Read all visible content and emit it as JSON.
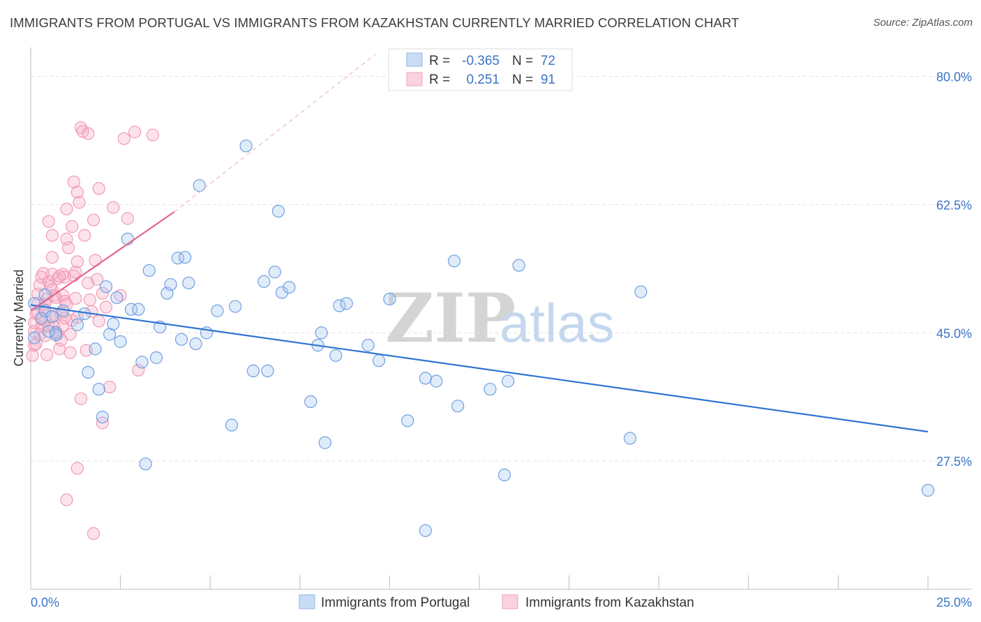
{
  "header": {
    "title": "IMMIGRANTS FROM PORTUGAL VS IMMIGRANTS FROM KAZAKHSTAN CURRENTLY MARRIED CORRELATION CHART",
    "source": "Source: ZipAtlas.com"
  },
  "watermark": {
    "zip": "ZIP",
    "atlas": "atlas"
  },
  "stats": [
    {
      "r_label": "R =",
      "r_value": "-0.365",
      "n_label": "N =",
      "n_value": "72",
      "color": "#a9c8ee"
    },
    {
      "r_label": "R =",
      "r_value": "0.251",
      "n_label": "N =",
      "n_value": "91",
      "color": "#f6b8ca"
    }
  ],
  "chart_data": {
    "type": "scatter",
    "title": "IMMIGRANTS FROM PORTUGAL VS IMMIGRANTS FROM KAZAKHSTAN CURRENTLY MARRIED CORRELATION CHART",
    "xlabel": "",
    "ylabel": "Currently Married",
    "xlim": [
      0,
      25
    ],
    "ylim": [
      10,
      83
    ],
    "x_tick_labels": [
      "0.0%",
      "25.0%"
    ],
    "y_ticks": [
      80,
      62.5,
      45,
      27.5
    ],
    "y_tick_labels": [
      "80.0%",
      "62.5%",
      "45.0%",
      "27.5%"
    ],
    "grid": true,
    "legend": [
      "Immigrants from Portugal",
      "Immigrants from Kazakhstan"
    ],
    "series": [
      {
        "name": "Immigrants from Portugal",
        "color": "#6f9fe0",
        "line_color": "#2f74d0",
        "trend": {
          "x": [
            0.0,
            25.0
          ],
          "y": [
            48.8,
            31.5
          ],
          "dashed_extension": false
        },
        "points": [
          [
            0.1,
            44.3
          ],
          [
            0.3,
            47.0
          ],
          [
            0.4,
            50.2
          ],
          [
            0.4,
            48.0
          ],
          [
            0.6,
            47.2
          ],
          [
            0.7,
            45.0
          ],
          [
            0.7,
            44.7
          ],
          [
            0.9,
            48.0
          ],
          [
            1.3,
            46.1
          ],
          [
            1.5,
            47.6
          ],
          [
            1.6,
            39.6
          ],
          [
            1.8,
            42.8
          ],
          [
            1.9,
            37.3
          ],
          [
            2.0,
            33.5
          ],
          [
            2.1,
            51.3
          ],
          [
            2.2,
            44.8
          ],
          [
            2.3,
            46.2
          ],
          [
            2.4,
            49.8
          ],
          [
            2.5,
            43.8
          ],
          [
            2.7,
            57.8
          ],
          [
            2.8,
            48.2
          ],
          [
            3.0,
            48.2
          ],
          [
            3.1,
            41.0
          ],
          [
            3.2,
            27.1
          ],
          [
            3.3,
            53.5
          ],
          [
            3.5,
            41.6
          ],
          [
            3.6,
            45.8
          ],
          [
            3.8,
            50.4
          ],
          [
            3.9,
            51.6
          ],
          [
            4.1,
            55.2
          ],
          [
            4.2,
            44.1
          ],
          [
            4.3,
            55.3
          ],
          [
            4.4,
            51.8
          ],
          [
            4.6,
            43.5
          ],
          [
            4.7,
            65.1
          ],
          [
            4.9,
            45.0
          ],
          [
            5.2,
            48.0
          ],
          [
            5.6,
            32.4
          ],
          [
            5.7,
            48.6
          ],
          [
            6.0,
            70.5
          ],
          [
            6.2,
            39.8
          ],
          [
            6.5,
            52.0
          ],
          [
            6.6,
            39.8
          ],
          [
            6.8,
            53.3
          ],
          [
            6.9,
            61.6
          ],
          [
            7.0,
            50.5
          ],
          [
            7.2,
            51.2
          ],
          [
            7.8,
            35.6
          ],
          [
            8.0,
            43.3
          ],
          [
            8.1,
            45.0
          ],
          [
            8.2,
            30.0
          ],
          [
            8.5,
            41.9
          ],
          [
            8.6,
            48.7
          ],
          [
            8.8,
            49.0
          ],
          [
            9.4,
            43.3
          ],
          [
            9.7,
            41.2
          ],
          [
            10.0,
            49.6
          ],
          [
            10.5,
            33.0
          ],
          [
            11.0,
            38.8
          ],
          [
            11.3,
            38.4
          ],
          [
            11.0,
            18.0
          ],
          [
            11.8,
            54.8
          ],
          [
            11.9,
            35.0
          ],
          [
            12.8,
            37.3
          ],
          [
            13.2,
            25.6
          ],
          [
            13.3,
            38.4
          ],
          [
            13.6,
            54.2
          ],
          [
            16.7,
            30.6
          ],
          [
            17.0,
            50.6
          ],
          [
            25.0,
            23.5
          ],
          [
            0.1,
            49.0
          ],
          [
            0.5,
            45.2
          ]
        ]
      },
      {
        "name": "Immigrants from Kazakhstan",
        "color": "#f29ab4",
        "line_color": "#e2648c",
        "trend": {
          "x": [
            0.0,
            4.0
          ],
          "y": [
            48.0,
            61.5
          ],
          "dashed_extension": true,
          "dash_to": [
            9.6,
            83.0
          ]
        },
        "points": [
          [
            0.05,
            41.9
          ],
          [
            0.1,
            43.3
          ],
          [
            0.1,
            45.2
          ],
          [
            0.1,
            46.4
          ],
          [
            0.2,
            47.7
          ],
          [
            0.2,
            49.0
          ],
          [
            0.2,
            50.3
          ],
          [
            0.25,
            51.5
          ],
          [
            0.3,
            52.6
          ],
          [
            0.3,
            45.8
          ],
          [
            0.35,
            48.3
          ],
          [
            0.4,
            44.6
          ],
          [
            0.4,
            46.6
          ],
          [
            0.45,
            49.6
          ],
          [
            0.5,
            52.0
          ],
          [
            0.5,
            60.2
          ],
          [
            0.5,
            45.9
          ],
          [
            0.55,
            47.2
          ],
          [
            0.6,
            50.9
          ],
          [
            0.6,
            53.0
          ],
          [
            0.6,
            58.3
          ],
          [
            0.6,
            55.3
          ],
          [
            0.65,
            45.8
          ],
          [
            0.7,
            47.4
          ],
          [
            0.7,
            49.8
          ],
          [
            0.75,
            52.4
          ],
          [
            0.75,
            44.8
          ],
          [
            0.8,
            42.8
          ],
          [
            0.85,
            47.7
          ],
          [
            0.9,
            50.1
          ],
          [
            0.9,
            53.0
          ],
          [
            0.9,
            45.9
          ],
          [
            0.95,
            49.3
          ],
          [
            0.95,
            52.6
          ],
          [
            1.0,
            57.8
          ],
          [
            1.0,
            61.9
          ],
          [
            1.05,
            56.6
          ],
          [
            1.1,
            42.3
          ],
          [
            1.1,
            44.8
          ],
          [
            1.15,
            59.5
          ],
          [
            1.2,
            52.8
          ],
          [
            1.2,
            65.6
          ],
          [
            1.25,
            53.3
          ],
          [
            1.3,
            47.1
          ],
          [
            1.3,
            54.7
          ],
          [
            1.3,
            64.2
          ],
          [
            1.35,
            62.8
          ],
          [
            1.4,
            73.0
          ],
          [
            1.4,
            36.0
          ],
          [
            1.45,
            72.5
          ],
          [
            1.5,
            58.3
          ],
          [
            1.55,
            42.6
          ],
          [
            1.6,
            51.8
          ],
          [
            1.6,
            72.2
          ],
          [
            1.65,
            49.5
          ],
          [
            1.7,
            47.9
          ],
          [
            1.75,
            60.4
          ],
          [
            1.8,
            54.9
          ],
          [
            1.85,
            52.3
          ],
          [
            1.9,
            64.7
          ],
          [
            1.9,
            46.6
          ],
          [
            2.0,
            50.4
          ],
          [
            2.0,
            32.7
          ],
          [
            2.1,
            48.5
          ],
          [
            2.2,
            37.6
          ],
          [
            2.3,
            62.1
          ],
          [
            2.5,
            50.1
          ],
          [
            2.6,
            71.5
          ],
          [
            2.7,
            60.6
          ],
          [
            2.9,
            72.4
          ],
          [
            3.0,
            39.9
          ],
          [
            3.4,
            72.0
          ],
          [
            1.3,
            26.5
          ],
          [
            1.0,
            22.2
          ],
          [
            1.75,
            17.6
          ],
          [
            0.15,
            43.5
          ],
          [
            0.3,
            46.9
          ],
          [
            0.4,
            48.9
          ],
          [
            0.55,
            51.3
          ],
          [
            0.7,
            45.1
          ],
          [
            0.85,
            44.0
          ],
          [
            1.0,
            48.9
          ],
          [
            1.15,
            46.7
          ],
          [
            0.25,
            44.8
          ],
          [
            0.45,
            42.0
          ],
          [
            0.65,
            50.1
          ],
          [
            0.8,
            52.7
          ],
          [
            0.95,
            47.0
          ],
          [
            1.25,
            49.7
          ],
          [
            0.35,
            53.1
          ],
          [
            0.15,
            47.6
          ]
        ]
      }
    ]
  }
}
